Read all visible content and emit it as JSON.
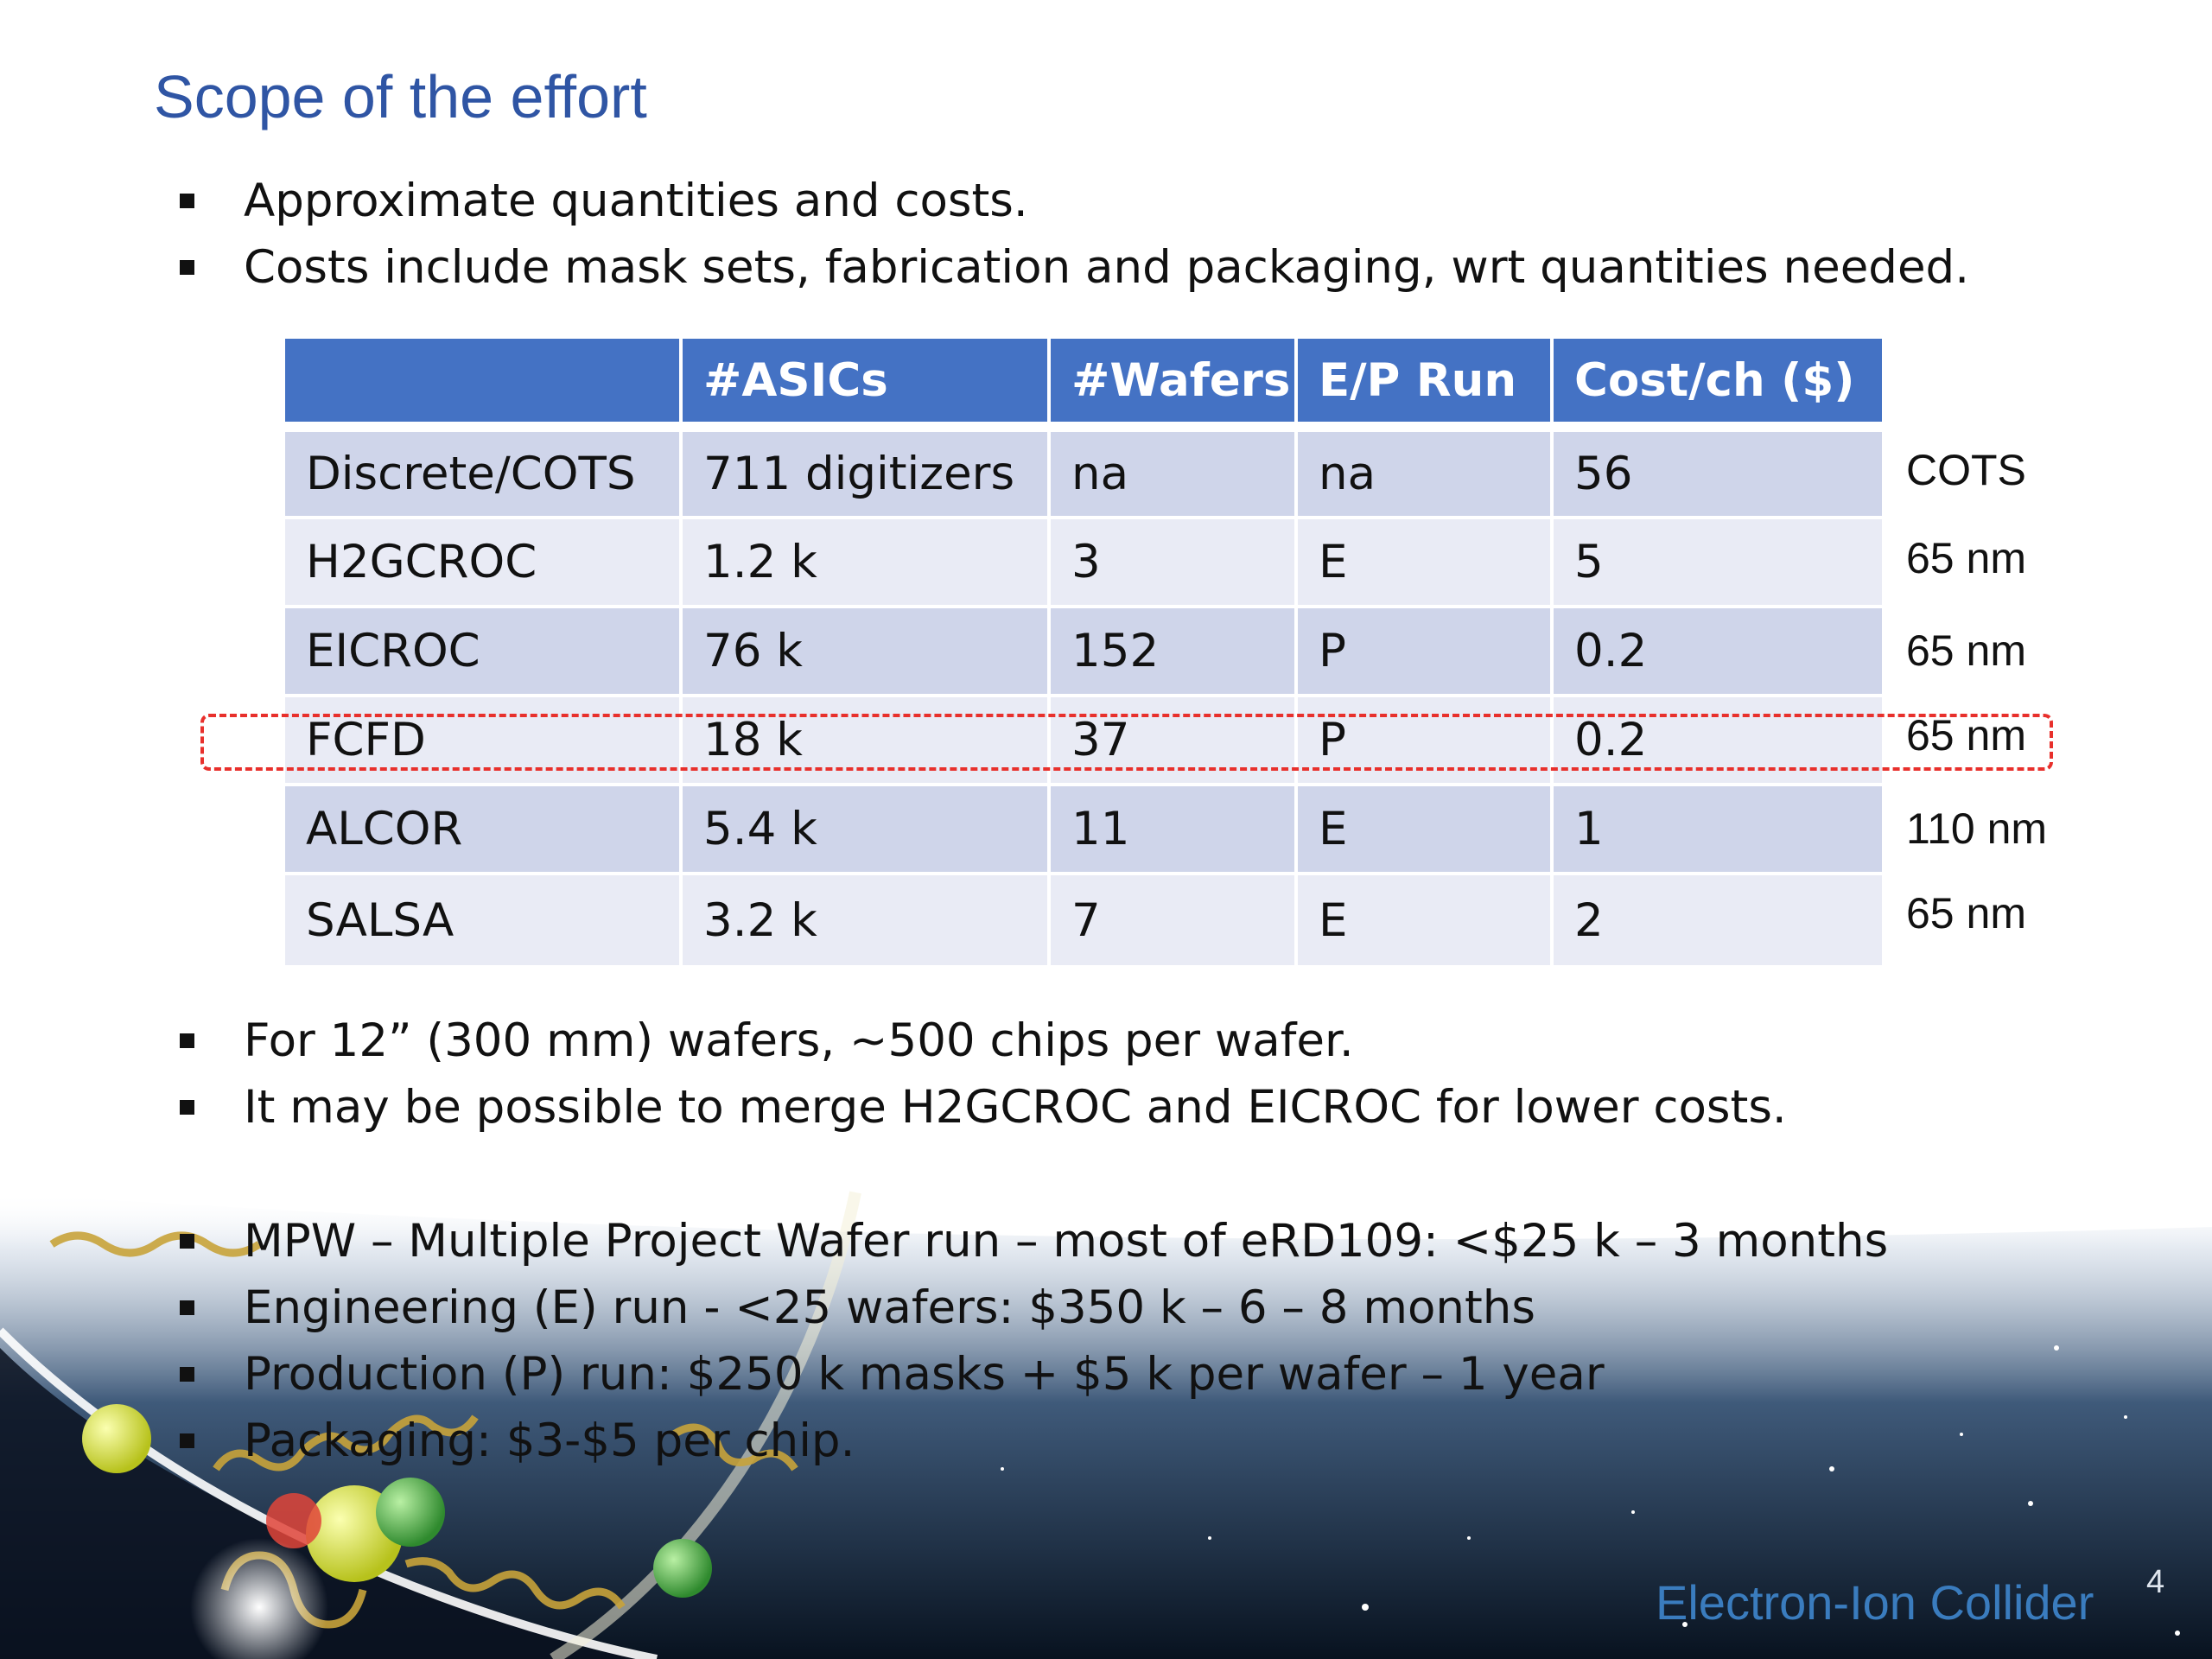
{
  "slide": {
    "title": "Scope of the effort",
    "number": "4",
    "footer_brand": "Electron-Ion Collider"
  },
  "bullets_top": [
    "Approximate quantities and costs.",
    "Costs include mask sets, fabrication and packaging, wrt quantities needed."
  ],
  "table": {
    "headers": [
      "",
      "#ASICs",
      "#Wafers",
      "E/P Run",
      "Cost/ch ($)"
    ],
    "rows": [
      {
        "name": "Discrete/COTS",
        "asics": "711 digitizers",
        "wafers": "na",
        "run": "na",
        "cost": "56",
        "note": "COTS"
      },
      {
        "name": "H2GCROC",
        "asics": "1.2 k",
        "wafers": "3",
        "run": "E",
        "cost": "5",
        "note": "65 nm"
      },
      {
        "name": "EICROC",
        "asics": "76 k",
        "wafers": "152",
        "run": "P",
        "cost": "0.2",
        "note": "65 nm"
      },
      {
        "name": "FCFD",
        "asics": "18 k",
        "wafers": "37",
        "run": "P",
        "cost": "0.2",
        "note": "65 nm"
      },
      {
        "name": "ALCOR",
        "asics": "5.4 k",
        "wafers": "11",
        "run": "E",
        "cost": "1",
        "note": "110 nm"
      },
      {
        "name": "SALSA",
        "asics": "3.2 k",
        "wafers": "7",
        "run": "E",
        "cost": "2",
        "note": "65 nm"
      }
    ],
    "highlighted_row": "FCFD",
    "colors": {
      "header": "#4472c4",
      "row_dark": "#cfd5ea",
      "row_light": "#e9ebf5",
      "highlight": "#e8302c"
    }
  },
  "bullets_middle": [
    "For 12” (300 mm) wafers, ~500 chips per wafer.",
    "It may be possible to merge H2GCROC and EICROC for lower costs."
  ],
  "bullets_bottom": [
    "MPW – Multiple Project Wafer run – most of eRD109: <$25 k – 3 months",
    "Engineering (E) run - <25 wafers: $350 k – 6 – 8 months",
    "Production (P) run: $250 k masks + $5 k per wafer – 1 year",
    "Packaging: $3-$5 per chip."
  ]
}
